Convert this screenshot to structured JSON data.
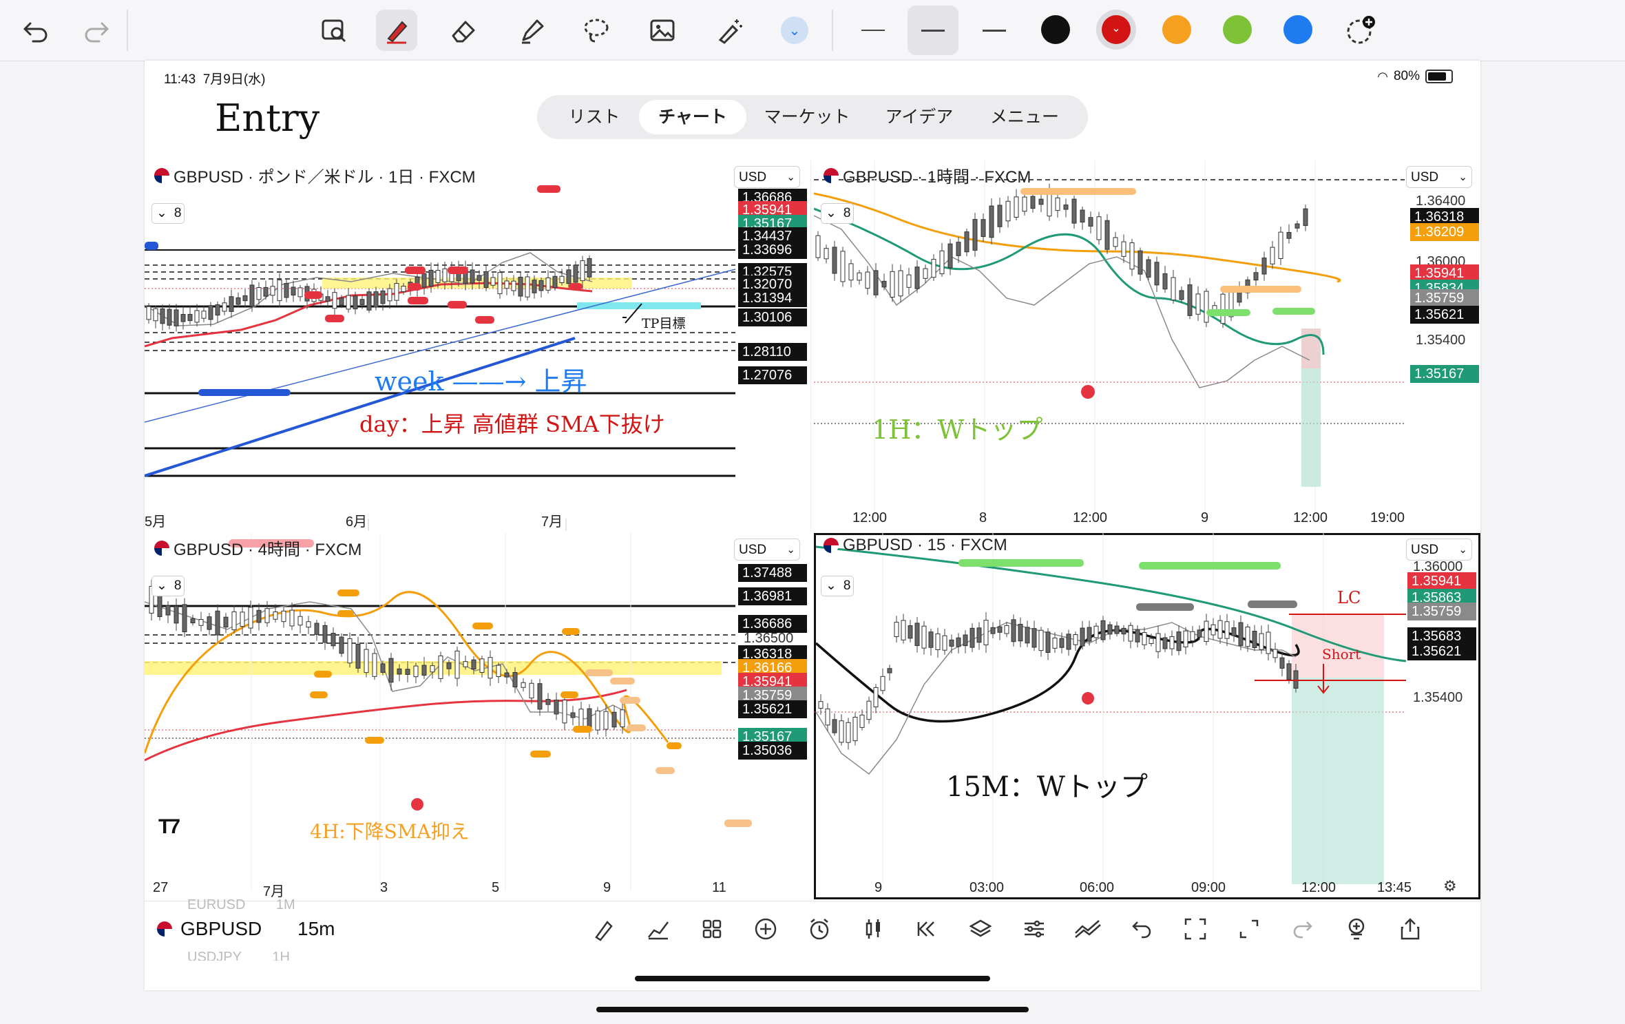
{
  "status": {
    "time": "11:43",
    "date": "7月9日(水)",
    "battery": "80%"
  },
  "nav_tabs": [
    {
      "label": "リスト"
    },
    {
      "label": "チャート"
    },
    {
      "label": "マーケット"
    },
    {
      "label": "アイデア"
    },
    {
      "label": "メニュー"
    }
  ],
  "handwriting": {
    "entry": "Entry",
    "week": "week",
    "week_rise": "上昇",
    "day_note": "day：上昇 高値群 SMA下抜け",
    "tp": "TP目標",
    "h1_note": "1H：Wトップ",
    "h4_note": "4H:下降SMA抑え",
    "m15_note": "15M：Wトップ",
    "lc": "LC",
    "short": "Short"
  },
  "colors": {
    "sell_red": "#e53340",
    "buy_green": "#1f9a76",
    "black": "#111111",
    "orange": "#f59e0b",
    "gray": "#8a8a8a"
  },
  "charts": {
    "daily": {
      "title": "GBPUSD · ポンド／米ドル · 1日 · FXCM",
      "currency": "USD",
      "layers": "8",
      "prices": [
        {
          "v": "1.36686",
          "c": "black"
        },
        {
          "v": "1.35941",
          "c": "red"
        },
        {
          "v": "1.35167",
          "c": "green"
        },
        {
          "v": "1.34437",
          "c": "black"
        },
        {
          "v": "1.33696",
          "c": "black"
        },
        {
          "v": "1.32575",
          "c": "black"
        },
        {
          "v": "1.32070",
          "c": "black"
        },
        {
          "v": "1.31394",
          "c": "black"
        },
        {
          "v": "1.30106",
          "c": "black"
        },
        {
          "v": "1.28110",
          "c": "black"
        },
        {
          "v": "1.27076",
          "c": "black"
        }
      ],
      "x_labels": [
        "5月",
        "6月",
        "7月"
      ]
    },
    "h1": {
      "title": "GBPUSD · 1時間 · FXCM",
      "currency": "USD",
      "layers": "8",
      "prices": [
        {
          "v": "1.36400",
          "c": "plain"
        },
        {
          "v": "1.36318",
          "c": "black"
        },
        {
          "v": "1.36209",
          "c": "orange"
        },
        {
          "v": "1.36000",
          "c": "plain"
        },
        {
          "v": "1.35941",
          "c": "red"
        },
        {
          "v": "1.35834",
          "c": "green"
        },
        {
          "v": "1.35759",
          "c": "gray"
        },
        {
          "v": "1.35621",
          "c": "black"
        },
        {
          "v": "1.35400",
          "c": "plain"
        },
        {
          "v": "1.35167",
          "c": "green"
        }
      ],
      "x_labels": [
        "12:00",
        "8",
        "12:00",
        "9",
        "12:00",
        "19:00"
      ]
    },
    "h4": {
      "title": "GBPUSD · 4時間 · FXCM",
      "currency": "USD",
      "layers": "8",
      "prices": [
        {
          "v": "1.37488",
          "c": "black"
        },
        {
          "v": "1.36981",
          "c": "black"
        },
        {
          "v": "1.36686",
          "c": "black"
        },
        {
          "v": "1.36500",
          "c": "plain"
        },
        {
          "v": "1.36318",
          "c": "black"
        },
        {
          "v": "1.36166",
          "c": "orange"
        },
        {
          "v": "1.35941",
          "c": "red"
        },
        {
          "v": "1.35759",
          "c": "gray"
        },
        {
          "v": "1.35621",
          "c": "black"
        },
        {
          "v": "1.35167",
          "c": "green"
        },
        {
          "v": "1.35036",
          "c": "black"
        }
      ],
      "x_labels": [
        "27",
        "7月",
        "3",
        "5",
        "9",
        "11"
      ]
    },
    "m15": {
      "title": "GBPUSD · 15 · FXCM",
      "currency": "USD",
      "layers": "8",
      "prices": [
        {
          "v": "1.36000",
          "c": "plain"
        },
        {
          "v": "1.35941",
          "c": "red"
        },
        {
          "v": "1.35863",
          "c": "green"
        },
        {
          "v": "1.35759",
          "c": "gray"
        },
        {
          "v": "1.35683",
          "c": "black"
        },
        {
          "v": "1.35621",
          "c": "black"
        },
        {
          "v": "1.35400",
          "c": "plain"
        }
      ],
      "x_labels": [
        "9",
        "03:00",
        "06:00",
        "09:00",
        "12:00",
        "13:45"
      ]
    }
  },
  "bottom": {
    "symbol_prev": "EURUSD",
    "symbol_prev_tf": "1M",
    "symbol": "GBPUSD",
    "timeframe": "15m",
    "symbol_next": "USDJPY",
    "symbol_next_tf": "1H"
  }
}
